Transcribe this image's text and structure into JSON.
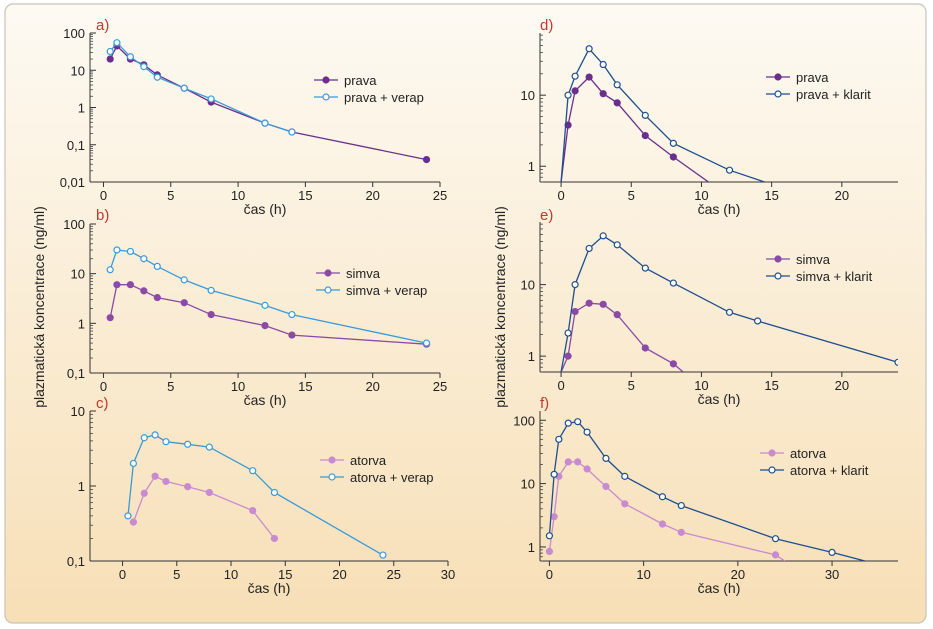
{
  "figure": {
    "ylabel": "plazmatická koncentrace (ng/ml)",
    "background": [
      "#fdfaf3",
      "#f7dfb6"
    ],
    "border_color": "#c9c3b8"
  },
  "chart_data": [
    {
      "id": "a",
      "panel_label": "a)",
      "type": "line",
      "yscale": "log",
      "xlabel": "čas (h)",
      "ylabel": "plazmatická koncentrace (ng/ml)",
      "xlim": [
        -1,
        25
      ],
      "ylim": [
        0.01,
        100
      ],
      "xticks": [
        0,
        5,
        10,
        15,
        20,
        25
      ],
      "xtick_labels": [
        "0",
        "5",
        "10",
        "15",
        "20",
        "25"
      ],
      "yticks": [
        0.01,
        0.1,
        1,
        10,
        100
      ],
      "ytick_labels": [
        "0,01",
        "0,1",
        "1",
        "10",
        "100"
      ],
      "legend_position": "center-right",
      "grid": false,
      "series": [
        {
          "name": "prava",
          "color": "#6a2f8c",
          "marker": "filled",
          "x": [
            0.5,
            1,
            2,
            3,
            4,
            6,
            8,
            12,
            14,
            24
          ],
          "y": [
            20,
            45,
            20,
            14,
            7.5,
            3.3,
            1.4,
            0.38,
            0.22,
            0.04
          ]
        },
        {
          "name": "prava + verap",
          "color": "#3a9ad9",
          "marker": "open",
          "x": [
            0.5,
            1,
            2,
            3,
            4,
            6,
            8,
            12,
            14
          ],
          "y": [
            32,
            55,
            23,
            12.5,
            6.5,
            3.3,
            1.7,
            0.38,
            0.22
          ]
        }
      ]
    },
    {
      "id": "b",
      "panel_label": "b)",
      "type": "line",
      "yscale": "log",
      "xlabel": "čas (h)",
      "ylabel": "plazmatická koncentrace (ng/ml)",
      "xlim": [
        -1,
        25
      ],
      "ylim": [
        0.1,
        100
      ],
      "xticks": [
        0,
        5,
        10,
        15,
        20,
        25
      ],
      "xtick_labels": [
        "0",
        "5",
        "10",
        "15",
        "20",
        "25"
      ],
      "yticks": [
        0.1,
        1,
        10,
        100
      ],
      "ytick_labels": [
        "0,1",
        "1",
        "10",
        "100"
      ],
      "legend_position": "center-right",
      "grid": false,
      "series": [
        {
          "name": "simva",
          "color": "#8a4aa6",
          "marker": "filled",
          "x": [
            0.5,
            1,
            2,
            3,
            4,
            6,
            8,
            12,
            14,
            24
          ],
          "y": [
            1.3,
            6,
            6,
            4.5,
            3.3,
            2.6,
            1.5,
            0.9,
            0.58,
            0.38
          ]
        },
        {
          "name": "simva + verap",
          "color": "#3a9ad9",
          "marker": "open",
          "x": [
            0.5,
            1,
            2,
            3,
            4,
            6,
            8,
            12,
            14,
            24
          ],
          "y": [
            12,
            30,
            28,
            20,
            14,
            7.5,
            4.6,
            2.3,
            1.5,
            0.4
          ]
        }
      ]
    },
    {
      "id": "c",
      "panel_label": "c)",
      "type": "line",
      "yscale": "log",
      "xlabel": "čas (h)",
      "ylabel": "plazmatická koncentrace (ng/ml)",
      "xlim": [
        -3,
        30
      ],
      "ylim": [
        0.1,
        10
      ],
      "xticks": [
        0,
        5,
        10,
        15,
        20,
        25,
        30
      ],
      "xtick_labels": [
        "0",
        "5",
        "10",
        "15",
        "20",
        "25",
        "30"
      ],
      "yticks": [
        0.1,
        1,
        10
      ],
      "ytick_labels": [
        "0,1",
        "1",
        "10"
      ],
      "legend_position": "center-right",
      "grid": false,
      "series": [
        {
          "name": "atorva",
          "color": "#c98bd0",
          "marker": "filled",
          "x": [
            1,
            2,
            3,
            4,
            6,
            8,
            12,
            14
          ],
          "y": [
            0.33,
            0.8,
            1.35,
            1.15,
            0.98,
            0.82,
            0.47,
            0.2
          ]
        },
        {
          "name": "atorva + verap",
          "color": "#3a9ad9",
          "marker": "open",
          "x": [
            0.5,
            1,
            2,
            3,
            4,
            6,
            8,
            12,
            14,
            24
          ],
          "y": [
            0.4,
            2,
            4.4,
            4.8,
            3.9,
            3.6,
            3.3,
            1.6,
            0.82,
            0.12
          ]
        }
      ]
    },
    {
      "id": "d",
      "panel_label": "d)",
      "type": "line",
      "yscale": "log",
      "xlabel": "čas (h)",
      "ylabel": "plazmatická koncentrace (ng/ml)",
      "xlim": [
        -1.5,
        24
      ],
      "ylim": [
        0.6,
        75
      ],
      "xticks": [
        0,
        5,
        10,
        15,
        20
      ],
      "xtick_labels": [
        "0",
        "5",
        "10",
        "15",
        "20"
      ],
      "yticks": [
        1,
        10
      ],
      "ytick_labels": [
        "1",
        "10"
      ],
      "legend_position": "top-right",
      "grid": false,
      "series": [
        {
          "name": "prava",
          "color": "#6a2f8c",
          "marker": "filled",
          "x": [
            0,
            0.5,
            1,
            2,
            3,
            4,
            6,
            8,
            10.5
          ],
          "y": [
            0.6,
            3.8,
            11.5,
            18,
            10.5,
            7.8,
            2.7,
            1.35,
            0.6
          ]
        },
        {
          "name": "prava + klarit",
          "color": "#1e4e8c",
          "marker": "open",
          "x": [
            0,
            0.5,
            1,
            2,
            3,
            4,
            6,
            8,
            12,
            14.5
          ],
          "y": [
            0.6,
            10,
            18.5,
            45,
            27,
            14,
            5.2,
            2.1,
            0.88,
            0.6
          ]
        }
      ]
    },
    {
      "id": "e",
      "panel_label": "e)",
      "type": "line",
      "yscale": "log",
      "xlabel": "čas (h)",
      "ylabel": "plazmatická koncentrace (ng/ml)",
      "xlim": [
        -1.5,
        24
      ],
      "ylim": [
        0.6,
        75
      ],
      "xticks": [
        0,
        5,
        10,
        15,
        20
      ],
      "xtick_labels": [
        "0",
        "5",
        "10",
        "15",
        "20"
      ],
      "yticks": [
        1,
        10
      ],
      "ytick_labels": [
        "1",
        "10"
      ],
      "legend_position": "top-right",
      "grid": false,
      "series": [
        {
          "name": "simva",
          "color": "#8a4aa6",
          "marker": "filled",
          "x": [
            0,
            0.5,
            1,
            2,
            3,
            4,
            6,
            8,
            8.7
          ],
          "y": [
            0.6,
            1,
            4.2,
            5.5,
            5.3,
            3.8,
            1.3,
            0.78,
            0.6
          ]
        },
        {
          "name": "simva + klarit",
          "color": "#1e4e8c",
          "marker": "open",
          "x": [
            0,
            0.5,
            1,
            2,
            3,
            4,
            6,
            8,
            12,
            14,
            24
          ],
          "y": [
            0.6,
            2.1,
            10,
            32,
            48,
            36,
            17,
            10.5,
            4.1,
            3.1,
            0.82
          ]
        }
      ]
    },
    {
      "id": "f",
      "panel_label": "f)",
      "type": "line",
      "yscale": "log",
      "xlabel": "čas (h)",
      "ylabel": "plazmatická koncentrace (ng/ml)",
      "xlim": [
        -1,
        37
      ],
      "ylim": [
        0.6,
        140
      ],
      "xticks": [
        0,
        10,
        20,
        30
      ],
      "xtick_labels": [
        "0",
        "10",
        "20",
        "30"
      ],
      "yticks": [
        1,
        10,
        100
      ],
      "ytick_labels": [
        "1",
        "10",
        "100"
      ],
      "legend_position": "top-right",
      "grid": false,
      "series": [
        {
          "name": "atorva",
          "color": "#c98bd0",
          "marker": "filled",
          "x": [
            0,
            0.5,
            1,
            2,
            3,
            4,
            6,
            8,
            12,
            14,
            24,
            25
          ],
          "y": [
            0.85,
            3,
            13,
            22,
            22,
            17,
            9,
            4.8,
            2.3,
            1.7,
            0.75,
            0.6
          ]
        },
        {
          "name": "atorva + klarit",
          "color": "#1e4e8c",
          "marker": "open",
          "x": [
            0,
            0.5,
            1,
            2,
            3,
            4,
            6,
            8,
            12,
            14,
            24,
            30,
            33.5
          ],
          "y": [
            1.5,
            14,
            50,
            90,
            95,
            65,
            25,
            13,
            6.2,
            4.5,
            1.35,
            0.82,
            0.6
          ]
        }
      ]
    }
  ]
}
